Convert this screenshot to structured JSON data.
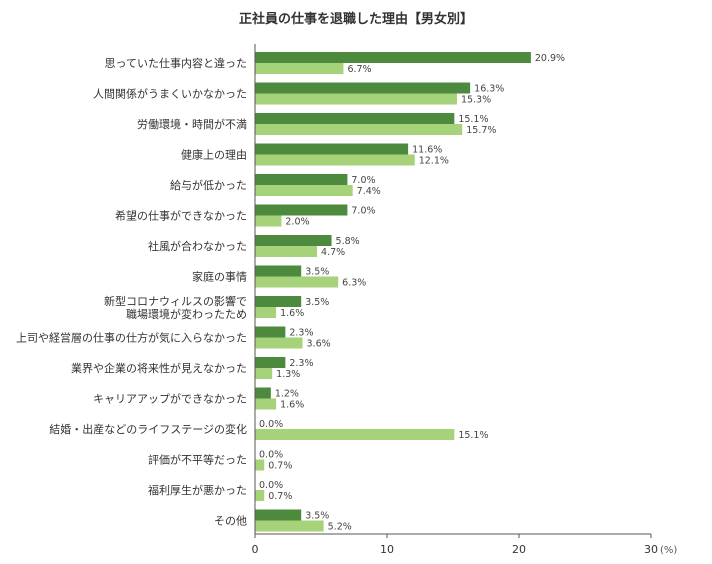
{
  "chart_data": {
    "type": "bar",
    "orientation": "horizontal",
    "title": "正社員の仕事を退職した理由【男女別】",
    "categories": [
      [
        "思っていた仕事内容と違った"
      ],
      [
        "人間関係がうまくいかなかった"
      ],
      [
        "労働環境・時間が不満"
      ],
      [
        "健康上の理由"
      ],
      [
        "給与が低かった"
      ],
      [
        "希望の仕事ができなかった"
      ],
      [
        "社風が合わなかった"
      ],
      [
        "家庭の事情"
      ],
      [
        "新型コロナウィルスの影響で",
        "職場環境が変わったため"
      ],
      [
        "上司や経営層の仕事の仕方が気に入らなかった"
      ],
      [
        "業界や企業の将来性が見えなかった"
      ],
      [
        "キャリアアップができなかった"
      ],
      [
        "結婚・出産などのライフステージの変化"
      ],
      [
        "評価が不平等だった"
      ],
      [
        "福利厚生が悪かった"
      ],
      [
        "その他"
      ]
    ],
    "series": [
      {
        "color": "#4e8a3e",
        "values": [
          20.9,
          16.3,
          15.1,
          11.6,
          7.0,
          7.0,
          5.8,
          3.5,
          3.5,
          2.3,
          2.3,
          1.2,
          0.0,
          0.0,
          0.0,
          3.5
        ],
        "labels": [
          "20.9%",
          "16.3%",
          "15.1%",
          "11.6%",
          "7.0%",
          "7.0%",
          "5.8%",
          "3.5%",
          "3.5%",
          "2.3%",
          "2.3%",
          "1.2%",
          "0.0%",
          "0.0%",
          "0.0%",
          "3.5%"
        ]
      },
      {
        "color": "#a6d27a",
        "values": [
          6.7,
          15.3,
          15.7,
          12.1,
          7.4,
          2.0,
          4.7,
          6.3,
          1.6,
          3.6,
          1.3,
          1.6,
          15.1,
          0.7,
          0.7,
          5.2
        ],
        "labels": [
          "6.7%",
          "15.3%",
          "15.7%",
          "12.1%",
          "7.4%",
          "2.0%",
          "4.7%",
          "6.3%",
          "1.6%",
          "3.6%",
          "1.3%",
          "1.6%",
          "15.1%",
          "0.7%",
          "0.7%",
          "5.2%"
        ]
      }
    ],
    "xlim": [
      0,
      30
    ],
    "x_ticks": [
      "0",
      "10",
      "20",
      "30"
    ],
    "x_unit": "(%)",
    "grid": false
  }
}
